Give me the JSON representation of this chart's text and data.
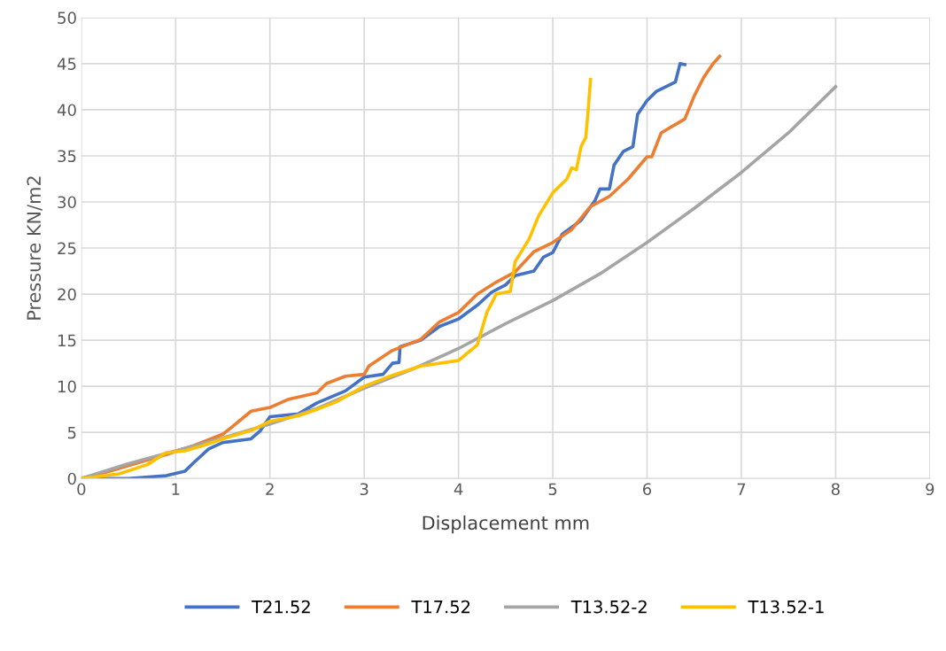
{
  "chart_data": {
    "type": "line",
    "xlabel": "Displacement mm",
    "ylabel": "Pressure KN/m2",
    "xlim": [
      0,
      9
    ],
    "xticks": [
      0,
      1,
      2,
      3,
      4,
      5,
      6,
      7,
      8,
      9
    ],
    "ylim": [
      0,
      50
    ],
    "yticks": [
      0,
      5,
      10,
      15,
      20,
      25,
      30,
      35,
      40,
      45,
      50
    ],
    "grid": true,
    "legend": "bottom",
    "marker": "none",
    "line_style": "solid",
    "series": [
      {
        "name": "T21.52",
        "color": "#4472c4",
        "x": [
          0,
          0.5,
          0.9,
          1.1,
          1.2,
          1.35,
          1.5,
          1.8,
          1.9,
          2.0,
          2.3,
          2.5,
          2.8,
          3.0,
          3.2,
          3.3,
          3.37,
          3.38,
          3.6,
          3.8,
          4.0,
          4.2,
          4.35,
          4.5,
          4.6,
          4.8,
          4.9,
          5.0,
          5.1,
          5.3,
          5.45,
          5.5,
          5.6,
          5.65,
          5.75,
          5.85,
          5.9,
          6.0,
          6.1,
          6.3,
          6.35,
          6.4
        ],
        "values": [
          0,
          0,
          0.3,
          0.8,
          1.8,
          3.2,
          3.9,
          4.3,
          5.2,
          6.7,
          7.0,
          8.2,
          9.5,
          11,
          11.3,
          12.5,
          12.6,
          14.3,
          15.0,
          16.5,
          17.3,
          18.8,
          20.2,
          21.0,
          22.0,
          22.5,
          24,
          24.5,
          26.5,
          28,
          30.2,
          31.4,
          31.4,
          34,
          35.5,
          36,
          39.5,
          41,
          42,
          43,
          45,
          44.9
        ]
      },
      {
        "name": "T17.52",
        "color": "#ed7d31",
        "x": [
          0,
          0.3,
          0.6,
          0.9,
          1.2,
          1.5,
          1.6,
          1.8,
          2.0,
          2.2,
          2.5,
          2.6,
          2.8,
          3.0,
          3.05,
          3.3,
          3.6,
          3.8,
          4.0,
          4.2,
          4.4,
          4.6,
          4.8,
          5.0,
          5.2,
          5.4,
          5.6,
          5.8,
          6.0,
          6.05,
          6.15,
          6.4,
          6.5,
          6.6,
          6.7,
          6.77
        ],
        "values": [
          0,
          0.8,
          1.7,
          2.6,
          3.6,
          4.8,
          5.6,
          7.3,
          7.7,
          8.6,
          9.3,
          10.3,
          11.1,
          11.3,
          12.2,
          13.9,
          15.1,
          17.0,
          18.0,
          20.0,
          21.3,
          22.4,
          24.6,
          25.6,
          27.0,
          29.5,
          30.6,
          32.5,
          34.9,
          34.9,
          37.5,
          39.0,
          41.5,
          43.5,
          45,
          45.8
        ]
      },
      {
        "name": "T13.52-2",
        "color": "#a5a5a5",
        "x": [
          0,
          0.5,
          1,
          1.5,
          2,
          2.5,
          3,
          3.5,
          4,
          4.5,
          5,
          5.5,
          6,
          6.5,
          7,
          7.5,
          8
        ],
        "values": [
          0,
          1.6,
          3,
          4.4,
          5.9,
          7.6,
          9.8,
          11.8,
          14.1,
          16.8,
          19.3,
          22.2,
          25.6,
          29.3,
          33.2,
          37.5,
          42.5
        ]
      },
      {
        "name": "T13.52-1",
        "color": "#ffc000",
        "x": [
          0,
          0.4,
          0.7,
          0.9,
          1.1,
          1.3,
          1.5,
          1.8,
          2.0,
          2.3,
          2.5,
          2.7,
          3,
          3.3,
          3.6,
          4.0,
          4.2,
          4.3,
          4.4,
          4.55,
          4.6,
          4.75,
          4.85,
          5.0,
          5.15,
          5.2,
          5.25,
          5.3,
          5.35,
          5.38,
          5.4
        ],
        "values": [
          0,
          0.5,
          1.5,
          2.8,
          3.0,
          3.6,
          4.3,
          5.2,
          6.2,
          6.8,
          7.5,
          8.3,
          10,
          11.2,
          12.2,
          12.8,
          14.5,
          18,
          20,
          20.3,
          23.5,
          26,
          28.5,
          31,
          32.5,
          33.7,
          33.5,
          36,
          37,
          40.5,
          43.3
        ]
      }
    ]
  }
}
